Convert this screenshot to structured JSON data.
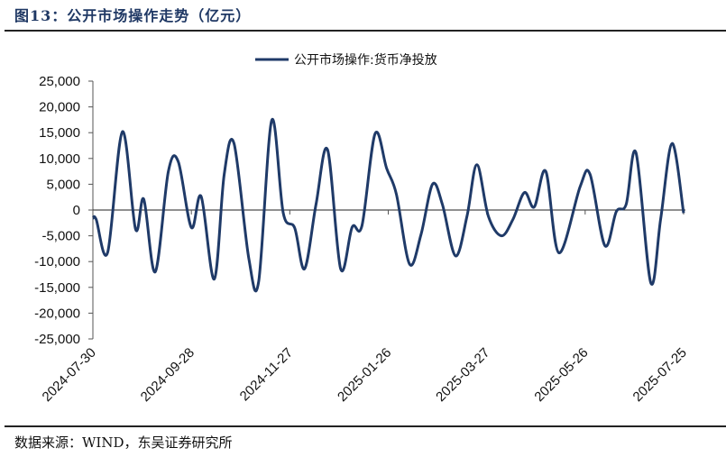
{
  "title": "图13：公开市场操作走势（亿元）",
  "source": "数据来源：WIND，东吴证券研究所",
  "chart_data": {
    "type": "line",
    "title": "公开市场操作走势（亿元）",
    "xlabel": "",
    "ylabel": "",
    "ylim": [
      -25000,
      25000
    ],
    "yticks": [
      25000,
      20000,
      15000,
      10000,
      5000,
      0,
      -5000,
      -10000,
      -15000,
      -20000,
      -25000
    ],
    "ytick_labels": [
      "25,000",
      "20,000",
      "15,000",
      "10,000",
      "5,000",
      "0",
      "-5,000",
      "-10,000",
      "-15,000",
      "-20,000",
      "-25,000"
    ],
    "xlim": [
      "2024-07-30",
      "2025-07-25"
    ],
    "xtick_labels": [
      "2024-07-30",
      "2024-09-28",
      "2024-11-27",
      "2025-01-26",
      "2025-03-27",
      "2025-05-26",
      "2025-07-25"
    ],
    "grid": false,
    "legend": "top-center",
    "line_color": "#1f3a68",
    "series": [
      {
        "name": "公开市场操作:货币净投放",
        "x": [
          "2024-07-30",
          "2024-08-01",
          "2024-08-08",
          "2024-08-17",
          "2024-08-25",
          "2024-08-30",
          "2024-09-06",
          "2024-09-14",
          "2024-09-20",
          "2024-09-28",
          "2024-10-04",
          "2024-10-12",
          "2024-10-18",
          "2024-10-24",
          "2024-11-02",
          "2024-11-08",
          "2024-11-16",
          "2024-11-23",
          "2024-11-30",
          "2024-12-06",
          "2024-12-13",
          "2024-12-20",
          "2024-12-28",
          "2025-01-04",
          "2025-01-10",
          "2025-01-18",
          "2025-01-25",
          "2025-01-31",
          "2025-02-08",
          "2025-02-15",
          "2025-02-22",
          "2025-02-28",
          "2025-03-08",
          "2025-03-15",
          "2025-03-21",
          "2025-03-28",
          "2025-04-05",
          "2025-04-12",
          "2025-04-19",
          "2025-04-25",
          "2025-05-02",
          "2025-05-10",
          "2025-05-23",
          "2025-05-29",
          "2025-06-07",
          "2025-06-14",
          "2025-06-20",
          "2025-06-26",
          "2025-07-05",
          "2025-07-11",
          "2025-07-18",
          "2025-07-25"
        ],
        "values": [
          -1600,
          -1800,
          -8200,
          15200,
          -3700,
          2100,
          -12000,
          7500,
          9400,
          -3400,
          2600,
          -13400,
          6900,
          12900,
          -9300,
          -13900,
          17400,
          -600,
          -3500,
          -11400,
          1100,
          11700,
          -11400,
          -3300,
          -3000,
          14800,
          8100,
          3000,
          -10500,
          -4700,
          5000,
          1100,
          -8900,
          -1200,
          8800,
          -1200,
          -5000,
          -1800,
          3400,
          600,
          7500,
          -8300,
          4600,
          6900,
          -6900,
          -300,
          1100,
          11100,
          -14100,
          -1800,
          12900,
          -600
        ]
      }
    ]
  }
}
